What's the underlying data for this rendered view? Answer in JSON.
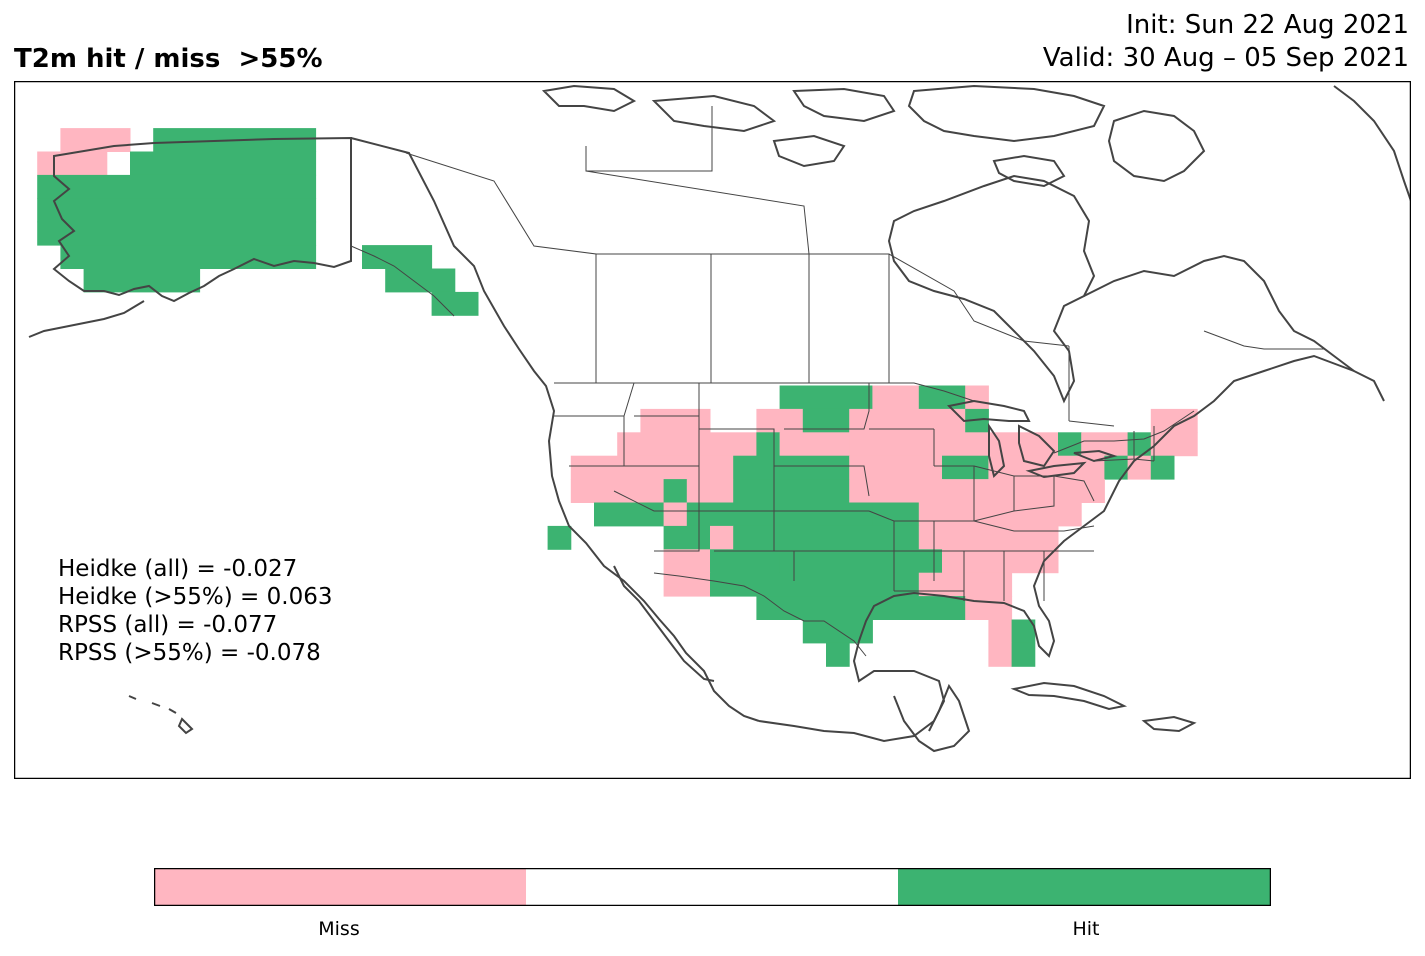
{
  "header": {
    "title": "T2m hit / miss  >55%",
    "init": "Init: Sun 22 Aug 2021",
    "valid": "Valid: 30 Aug – 05 Sep 2021"
  },
  "stats": [
    "Heidke (all) = -0.027",
    "Heidke (>55%) = 0.063",
    "RPSS (all) = -0.077",
    "RPSS (>55%) = -0.078"
  ],
  "legend": {
    "items": [
      {
        "label": "Miss",
        "color": "#ffb6c1"
      },
      {
        "label": "",
        "color": "#ffffff"
      },
      {
        "label": "Hit",
        "color": "#3cb371"
      }
    ]
  },
  "colors": {
    "miss": "#ffb6c1",
    "hit": "#3cb371",
    "coast": "#444444"
  }
}
